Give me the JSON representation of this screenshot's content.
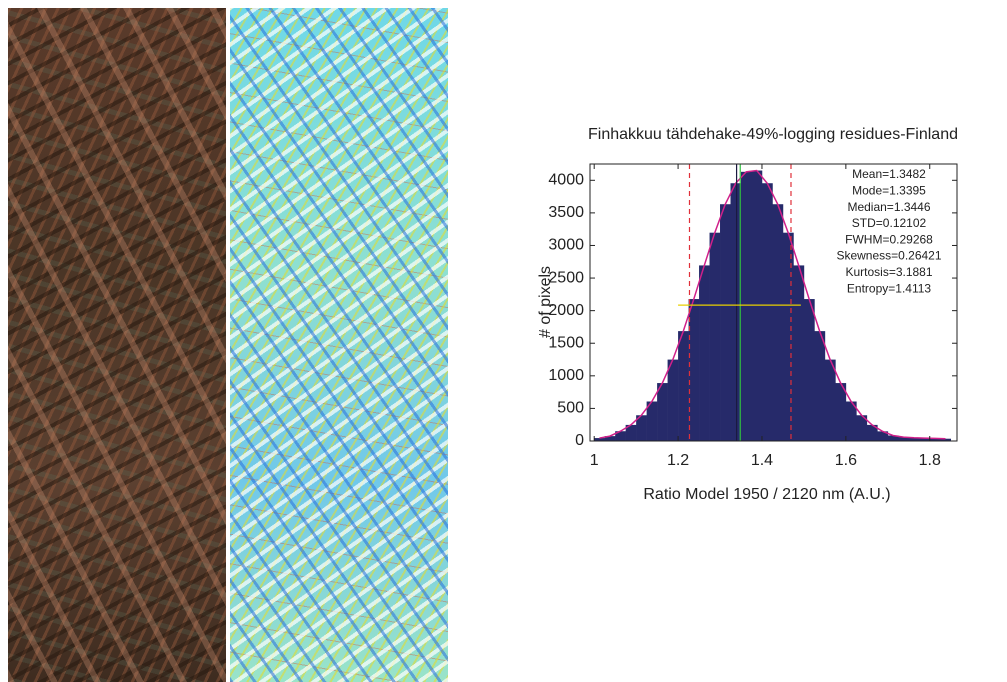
{
  "chart_data": {
    "type": "histogram",
    "title": "Finhakkuu tähdehake-49%-logging residues-Finland",
    "x_label": "Ratio Model 1950 / 2120 nm (A.U.)",
    "y_label": "# of pixels",
    "bins": [
      1,
      1.025,
      1.05,
      1.075,
      1.1,
      1.125,
      1.15,
      1.175,
      1.2,
      1.225,
      1.25,
      1.275,
      1.3,
      1.325,
      1.35,
      1.375,
      1.4,
      1.425,
      1.45,
      1.475,
      1.5,
      1.525,
      1.55,
      1.575,
      1.6,
      1.625,
      1.65,
      1.675,
      1.7,
      1.725,
      1.75,
      1.775,
      1.8,
      1.825,
      1.85
    ],
    "counts": [
      45,
      75,
      150,
      247,
      395,
      606,
      889,
      1249,
      1686,
      2178,
      2694,
      3196,
      3633,
      3955,
      4130,
      4150,
      3955,
      3633,
      3196,
      2694,
      2178,
      1686,
      1249,
      889,
      606,
      395,
      247,
      148,
      85,
      60,
      50,
      45,
      40,
      35
    ],
    "color": "#262a6a",
    "fit_color": "#d0208a",
    "xlim": [
      0.99,
      1.865
    ],
    "ylim": [
      0,
      4250
    ],
    "xticks": [
      1,
      1.2,
      1.4,
      1.6,
      1.8
    ],
    "yticks": [
      0,
      500,
      1000,
      1500,
      2000,
      2500,
      3000,
      3500,
      4000
    ],
    "stats": [
      "Mean=1.3482",
      "Mode=1.3395",
      "Median=1.3446",
      "STD=0.12102",
      "FWHM=0.29268",
      "Skewness=0.26421",
      "Kurtosis=3.1881",
      "Entropy=1.4113"
    ],
    "reference_lines": [
      {
        "axis": "x",
        "value": 1.2272,
        "color": "#e0303a",
        "style": "dashed"
      },
      {
        "axis": "x",
        "value": 1.4692,
        "color": "#e0303a",
        "style": "dashed"
      },
      {
        "axis": "x",
        "value": 1.3395,
        "color": "#1a1a40",
        "style": "solid"
      },
      {
        "axis": "x",
        "value": 1.3482,
        "color": "#30c040",
        "style": "solid"
      },
      {
        "axis": "y",
        "value": 2085,
        "from": 1.2,
        "to": 1.4927,
        "color": "#e8d000",
        "style": "solid"
      }
    ]
  }
}
